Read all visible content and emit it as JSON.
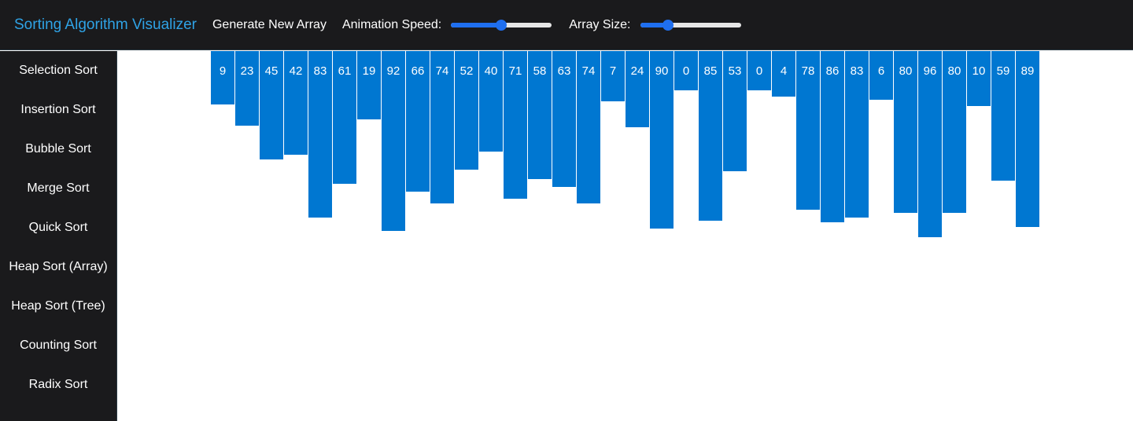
{
  "header": {
    "title": "Sorting Algorithm Visualizer",
    "generate_label": "Generate New Array",
    "speed_label": "Animation Speed:",
    "size_label": "Array Size:",
    "speed_value": 0.5,
    "size_value": 0.28
  },
  "sidebar": {
    "items": [
      {
        "label": "Selection Sort"
      },
      {
        "label": "Insertion Sort"
      },
      {
        "label": "Bubble Sort"
      },
      {
        "label": "Merge Sort"
      },
      {
        "label": "Quick Sort"
      },
      {
        "label": "Heap Sort (Array)"
      },
      {
        "label": "Heap Sort (Tree)"
      },
      {
        "label": "Counting Sort"
      },
      {
        "label": "Radix Sort"
      }
    ]
  },
  "colors": {
    "bar": "#0077d1",
    "accent": "#2fa3e6",
    "slider_fill": "#1f6ff0",
    "slider_track": "#e6e6e6",
    "knob": "#1f6ff0"
  },
  "array": [
    9,
    23,
    45,
    42,
    83,
    61,
    19,
    92,
    66,
    74,
    52,
    40,
    71,
    58,
    63,
    74,
    7,
    24,
    90,
    0,
    85,
    53,
    0,
    4,
    78,
    86,
    83,
    6,
    80,
    96,
    80,
    10,
    59,
    89
  ]
}
